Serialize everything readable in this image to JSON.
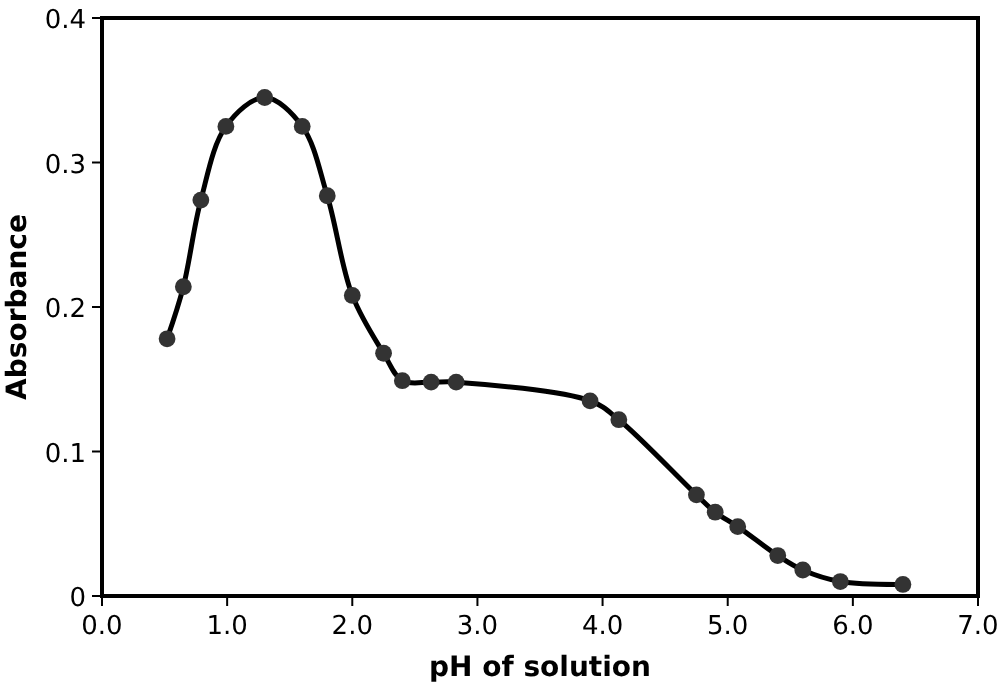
{
  "chart_data": {
    "type": "line",
    "xlabel": "pH of solution",
    "ylabel": "Absorbance",
    "x": [
      0.52,
      0.65,
      0.79,
      0.99,
      1.3,
      1.6,
      1.8,
      2.0,
      2.25,
      2.4,
      2.63,
      2.83,
      3.9,
      4.13,
      4.75,
      4.9,
      5.08,
      5.4,
      5.6,
      5.9,
      6.4
    ],
    "series": [
      {
        "color": "#000000",
        "values": [
          0.178,
          0.214,
          0.274,
          0.325,
          0.345,
          0.325,
          0.277,
          0.208,
          0.168,
          0.149,
          0.148,
          0.148,
          0.135,
          0.122,
          0.07,
          0.058,
          0.048,
          0.028,
          0.018,
          0.01,
          0.008
        ]
      }
    ],
    "xlim": [
      0,
      7
    ],
    "xticks": [
      {
        "value": 0,
        "label": "0.0"
      },
      {
        "value": 1,
        "label": "1.0"
      },
      {
        "value": 2,
        "label": "2.0"
      },
      {
        "value": 3,
        "label": "3.0"
      },
      {
        "value": 4,
        "label": "4.0"
      },
      {
        "value": 5,
        "label": "5.0"
      },
      {
        "value": 6,
        "label": "6.0"
      },
      {
        "value": 7,
        "label": "7.0"
      }
    ],
    "ylim": [
      0,
      0.4
    ],
    "yticks": [
      0,
      0.1,
      0.2,
      0.3,
      0.4
    ],
    "marker": "circle",
    "line_style": "solid",
    "grid": false
  }
}
